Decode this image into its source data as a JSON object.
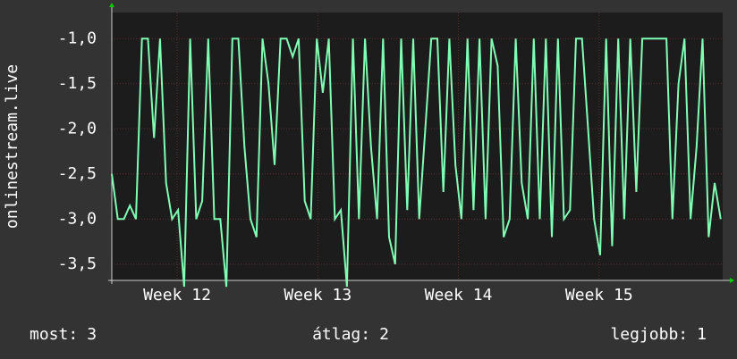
{
  "chart_data": {
    "type": "line",
    "y_label": "onlinestream.live",
    "x": [
      0,
      0.3,
      0.6,
      0.9,
      1.2,
      1.5,
      1.8,
      2.1,
      2.4,
      2.7,
      3,
      3.3,
      3.6,
      3.9,
      4.2,
      4.5,
      4.8,
      5.1,
      5.4,
      5.7,
      6,
      6.3,
      6.6,
      6.9,
      7.2,
      7.5,
      7.8,
      8.1,
      8.4,
      8.7,
      9,
      9.3,
      9.6,
      9.9,
      10.2,
      10.5,
      10.8,
      11.1,
      11.4,
      11.7,
      12,
      12.3,
      12.6,
      12.9,
      13.2,
      13.5,
      13.8,
      14.1,
      14.4,
      14.7,
      15,
      15.3,
      15.6,
      15.9,
      16.2,
      16.5,
      16.8,
      17.1,
      17.4,
      17.7,
      18,
      18.3,
      18.6,
      18.9,
      19.2,
      19.5,
      19.8,
      20.1,
      20.4,
      20.7,
      21,
      21.3,
      21.6,
      21.9,
      22.2,
      22.5,
      22.8,
      23.1,
      23.4,
      23.7,
      24,
      24.3,
      24.6,
      24.9,
      25.2,
      25.5,
      25.8,
      26.1,
      26.4,
      26.7,
      27,
      27.3,
      27.6,
      27.9,
      28.2,
      28.5,
      28.8,
      29.1,
      29.4,
      29.7,
      30,
      30.3
    ],
    "series": [
      {
        "color": "#80ffb4",
        "values": [
          -2.5,
          -3.0,
          -3.0,
          -2.85,
          -3.0,
          -1.0,
          -1.0,
          -2.1,
          -1.0,
          -2.6,
          -3.0,
          -2.9,
          -3.75,
          -1.0,
          -3.0,
          -2.8,
          -1.0,
          -3.0,
          -3.0,
          -3.75,
          -1.0,
          -1.0,
          -2.2,
          -3.0,
          -3.2,
          -1.0,
          -1.5,
          -2.4,
          -1.0,
          -1.0,
          -1.2,
          -1.0,
          -2.8,
          -3.0,
          -1.0,
          -1.6,
          -1.0,
          -3.0,
          -2.9,
          -3.75,
          -1.0,
          -3.0,
          -1.0,
          -2.2,
          -3.0,
          -1.0,
          -3.2,
          -3.5,
          -1.0,
          -2.9,
          -1.0,
          -3.0,
          -2.0,
          -1.0,
          -1.0,
          -2.7,
          -1.0,
          -2.4,
          -3.0,
          -1.0,
          -2.9,
          -1.0,
          -3.0,
          -1.0,
          -1.3,
          -3.2,
          -3.0,
          -1.0,
          -2.6,
          -3.0,
          -1.0,
          -3.0,
          -1.0,
          -3.2,
          -1.0,
          -3.0,
          -2.9,
          -1.0,
          -1.0,
          -2.0,
          -3.0,
          -3.4,
          -1.0,
          -3.3,
          -1.0,
          -3.0,
          -1.0,
          -2.7,
          -1.0,
          -1.0,
          -1.0,
          -1.0,
          -1.0,
          -3.0,
          -1.5,
          -1.0,
          -3.0,
          -2.2,
          -1.0,
          -3.2,
          -2.6,
          -3.0
        ]
      }
    ],
    "xlim": [
      0,
      30.4
    ],
    "xticks": [
      {
        "value": 3.25,
        "label": "Week 12"
      },
      {
        "value": 10.25,
        "label": "Week 13"
      },
      {
        "value": 17.25,
        "label": "Week 14"
      },
      {
        "value": 24.25,
        "label": "Week 15"
      }
    ],
    "ylim": [
      -3.68,
      -0.71
    ],
    "yticks": [
      {
        "value": -3.5,
        "label": "-3,5"
      },
      {
        "value": -3.0,
        "label": "-3,0"
      },
      {
        "value": -2.5,
        "label": "-2,5"
      },
      {
        "value": -2.0,
        "label": "-2,0"
      },
      {
        "value": -1.5,
        "label": "-1,5"
      },
      {
        "value": -1.0,
        "label": "-1,0"
      }
    ],
    "grid": true,
    "stats": [
      {
        "label": "most:",
        "value": 3
      },
      {
        "label": "átlag:",
        "value": 2
      },
      {
        "label": "legjobb:",
        "value": 1
      }
    ]
  }
}
